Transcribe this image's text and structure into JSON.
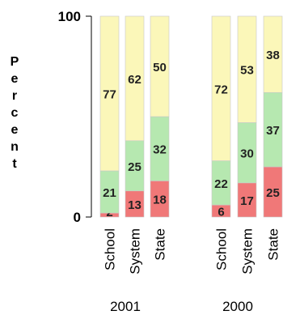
{
  "chart_data": {
    "type": "bar",
    "stacked": true,
    "ylabel": "Percent",
    "ylim": [
      0,
      100
    ],
    "yticks": [
      0,
      100
    ],
    "groups": [
      {
        "label": "2001",
        "categories": [
          "School",
          "System",
          "State"
        ]
      },
      {
        "label": "2000",
        "categories": [
          "School",
          "System",
          "State"
        ]
      }
    ],
    "categories": [
      "School",
      "System",
      "State",
      "School",
      "System",
      "State"
    ],
    "series": [
      {
        "color": "#f07878",
        "values": [
          2,
          13,
          18,
          6,
          17,
          25
        ],
        "labels": [
          "2",
          "13",
          "18",
          "6",
          "17",
          "25"
        ]
      },
      {
        "color": "#b6e8b0",
        "values": [
          21,
          25,
          32,
          22,
          30,
          37
        ],
        "labels": [
          "21",
          "25",
          "32",
          "22",
          "30",
          "37"
        ]
      },
      {
        "color": "#fbf7b9",
        "values": [
          77,
          62,
          50,
          72,
          53,
          38
        ],
        "labels": [
          "77",
          "62",
          "50",
          "72",
          "53",
          "38"
        ]
      }
    ]
  }
}
